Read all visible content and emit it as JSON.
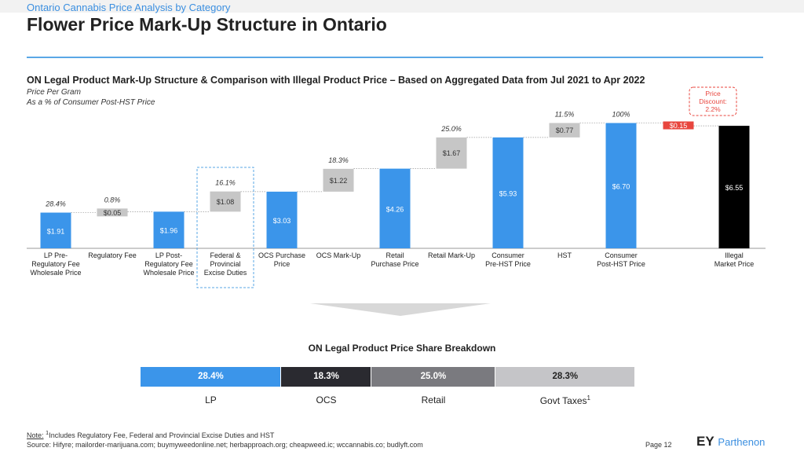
{
  "header": {
    "supertitle": "Ontario Cannabis Price Analysis by Category",
    "title": "Flower Price Mark-Up Structure in Ontario"
  },
  "chart_data": [
    {
      "type": "bar",
      "title": "ON Legal Product Mark-Up Structure & Comparison with Illegal Product Price – Based on Aggregated Data from Jul 2021 to Apr 2022",
      "subtitle_lines": [
        "Price Per Gram",
        "As a % of Consumer Post-HST Price"
      ],
      "subtype": "waterfall",
      "unit": "$ per gram",
      "bars": [
        {
          "category": [
            "LP Pre-",
            "Regulatory Fee",
            "Wholesale Price"
          ],
          "value": 1.91,
          "value_label": "$1.91",
          "pct_label": "28.4%",
          "kind": "total"
        },
        {
          "category": [
            "Regulatory Fee"
          ],
          "value": 0.05,
          "value_label": "$0.05",
          "pct_label": "0.8%",
          "kind": "increment"
        },
        {
          "category": [
            "LP Post-",
            "Regulatory Fee",
            "Wholesale Price"
          ],
          "value": 1.96,
          "value_label": "$1.96",
          "pct_label": "",
          "kind": "total"
        },
        {
          "category": [
            "Federal &",
            "Provincial",
            "Excise Duties"
          ],
          "value": 1.08,
          "value_label": "$1.08",
          "pct_label": "16.1%",
          "kind": "increment"
        },
        {
          "category": [
            "OCS Purchase",
            "Price"
          ],
          "value": 3.03,
          "value_label": "$3.03",
          "pct_label": "",
          "kind": "total"
        },
        {
          "category": [
            "OCS Mark-Up"
          ],
          "value": 1.22,
          "value_label": "$1.22",
          "pct_label": "18.3%",
          "kind": "increment"
        },
        {
          "category": [
            "Retail",
            "Purchase Price"
          ],
          "value": 4.26,
          "value_label": "$4.26",
          "pct_label": "",
          "kind": "total"
        },
        {
          "category": [
            "Retail Mark-Up"
          ],
          "value": 1.67,
          "value_label": "$1.67",
          "pct_label": "25.0%",
          "kind": "increment"
        },
        {
          "category": [
            "Consumer",
            "Pre-HST Price"
          ],
          "value": 5.93,
          "value_label": "$5.93",
          "pct_label": "",
          "kind": "total"
        },
        {
          "category": [
            "HST"
          ],
          "value": 0.77,
          "value_label": "$0.77",
          "pct_label": "11.5%",
          "kind": "increment"
        },
        {
          "category": [
            "Consumer",
            "Post-HST Price"
          ],
          "value": 6.7,
          "value_label": "$6.70",
          "pct_label": "100%",
          "kind": "total"
        },
        {
          "category": [],
          "value": -0.15,
          "value_label": "$0.15",
          "pct_label": "",
          "kind": "decrement"
        },
        {
          "category": [
            "Illegal",
            "Market Price"
          ],
          "value": 6.55,
          "value_label": "$6.55",
          "pct_label": "",
          "kind": "illegal"
        }
      ],
      "highlight_category": "Federal & Provincial Excise Duties",
      "callout_lines": [
        "Price",
        "Discount:",
        "2.2%"
      ],
      "colors": {
        "total": "#3b95ea",
        "increment": "#c6c6c6",
        "decrement": "#e8463e",
        "illegal": "#000000",
        "callout": "#e8463e"
      },
      "ylim": [
        0,
        7.2
      ]
    },
    {
      "type": "bar",
      "subtype": "stacked-100",
      "title": "ON Legal Product Price Share Breakdown",
      "segments": [
        {
          "name": "LP",
          "value": 28.4,
          "label": "28.4%",
          "color": "#3b95ea"
        },
        {
          "name": "OCS",
          "value": 18.3,
          "label": "18.3%",
          "color": "#2a2a30"
        },
        {
          "name": "Retail",
          "value": 25.0,
          "label": "25.0%",
          "color": "#7a7a7f"
        },
        {
          "name": "Govt Taxes",
          "sup": "1",
          "value": 28.3,
          "label": "28.3%",
          "color": "#c5c5c8"
        }
      ]
    }
  ],
  "footer": {
    "note_label": "Note:",
    "note_sup": "1",
    "note_text": "Includes Regulatory Fee, Federal and Provincial Excise Duties and HST",
    "source": "Source: Hifyre; mailorder-marijuana.com; buymyweedonline.net; herbapproach.org; cheapweed.ic; wccannabis.co; budlyft.com",
    "page": "Page 12",
    "logo_ey": "EY",
    "logo_name": "Parthenon"
  }
}
